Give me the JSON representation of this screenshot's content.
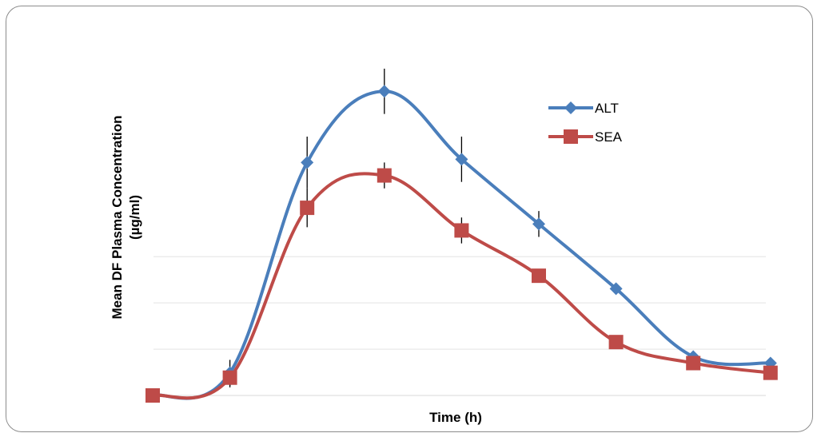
{
  "chart_data": {
    "type": "line",
    "title": "",
    "xlabel": "Time (h)",
    "ylabel": "Mean DF Plasma Concentration",
    "ylabel_unit": "(µg/ml)",
    "x": [
      0,
      1,
      2,
      3,
      4,
      5,
      6,
      7,
      8
    ],
    "ylim": [
      0,
      1.0
    ],
    "grid": "horizontal",
    "legend_position": "top-right",
    "smooth": true,
    "series": [
      {
        "name": "ALT",
        "color": "#4a7ebb",
        "marker": "diamond",
        "values": [
          0.0,
          0.07,
          0.72,
          0.94,
          0.73,
          0.53,
          0.33,
          0.12,
          0.1
        ],
        "errors": [
          0.0,
          0.04,
          0.08,
          0.07,
          0.07,
          0.04,
          0.0,
          0.0,
          0.0
        ]
      },
      {
        "name": "SEA",
        "color": "#be4b48",
        "marker": "square",
        "values": [
          0.0,
          0.055,
          0.58,
          0.68,
          0.51,
          0.37,
          0.165,
          0.1,
          0.07
        ],
        "errors": [
          0.0,
          0.03,
          0.06,
          0.04,
          0.04,
          0.0,
          0.0,
          0.0,
          0.0
        ]
      }
    ]
  }
}
